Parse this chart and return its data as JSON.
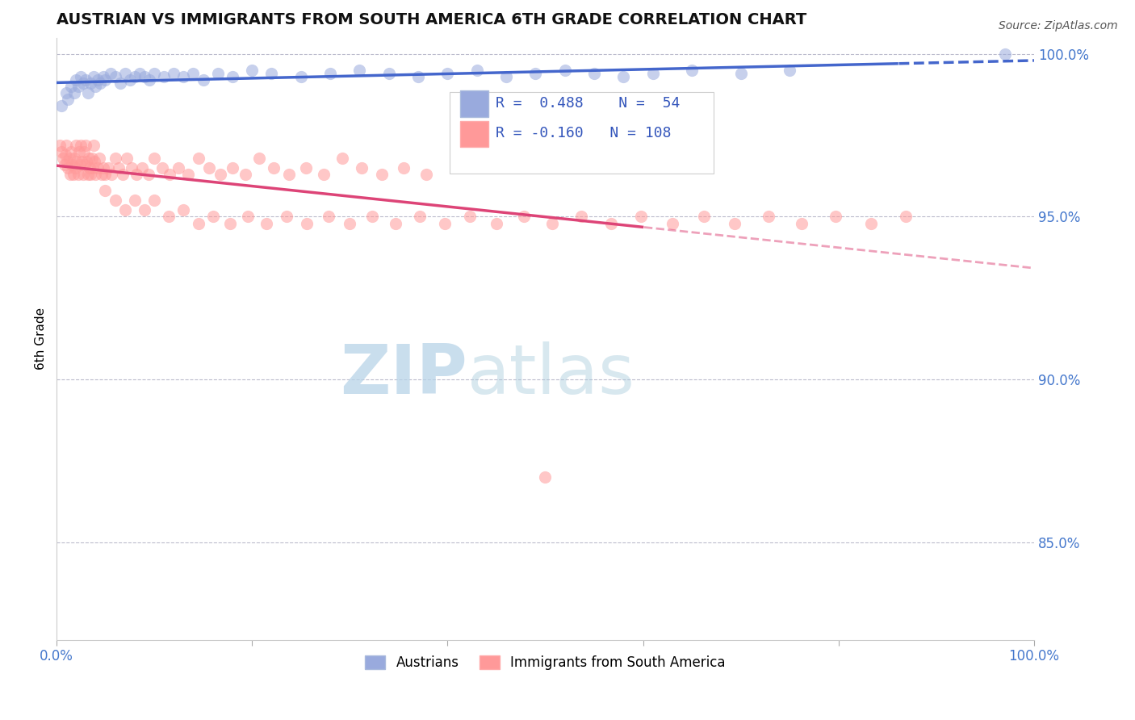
{
  "title": "AUSTRIAN VS IMMIGRANTS FROM SOUTH AMERICA 6TH GRADE CORRELATION CHART",
  "source": "Source: ZipAtlas.com",
  "ylabel": "6th Grade",
  "xlim": [
    0.0,
    1.0
  ],
  "ylim": [
    0.82,
    1.005
  ],
  "yticks": [
    0.85,
    0.9,
    0.95,
    1.0
  ],
  "ytick_labels": [
    "85.0%",
    "90.0%",
    "95.0%",
    "100.0%"
  ],
  "xticks": [
    0.0,
    0.2,
    0.4,
    0.6,
    0.8,
    1.0
  ],
  "xtick_labels": [
    "0.0%",
    "",
    "",
    "",
    "",
    "100.0%"
  ],
  "blue_R": 0.488,
  "blue_N": 54,
  "pink_R": -0.16,
  "pink_N": 108,
  "blue_color": "#99AADD",
  "pink_color": "#FF9999",
  "trend_blue_color": "#4466CC",
  "trend_pink_color": "#DD4477",
  "watermark_zip": "ZIP",
  "watermark_atlas": "atlas",
  "legend_label_blue": "Austrians",
  "legend_label_pink": "Immigrants from South America",
  "blue_x": [
    0.005,
    0.01,
    0.012,
    0.015,
    0.018,
    0.02,
    0.022,
    0.025,
    0.027,
    0.03,
    0.032,
    0.035,
    0.038,
    0.04,
    0.042,
    0.045,
    0.048,
    0.05,
    0.055,
    0.06,
    0.065,
    0.07,
    0.075,
    0.08,
    0.085,
    0.09,
    0.095,
    0.1,
    0.11,
    0.12,
    0.13,
    0.14,
    0.15,
    0.165,
    0.18,
    0.2,
    0.22,
    0.25,
    0.28,
    0.31,
    0.34,
    0.37,
    0.4,
    0.43,
    0.46,
    0.49,
    0.52,
    0.55,
    0.58,
    0.61,
    0.65,
    0.7,
    0.75,
    0.97
  ],
  "blue_y": [
    0.984,
    0.988,
    0.986,
    0.99,
    0.988,
    0.992,
    0.99,
    0.993,
    0.991,
    0.992,
    0.988,
    0.991,
    0.993,
    0.99,
    0.992,
    0.991,
    0.993,
    0.992,
    0.994,
    0.993,
    0.991,
    0.994,
    0.992,
    0.993,
    0.994,
    0.993,
    0.992,
    0.994,
    0.993,
    0.994,
    0.993,
    0.994,
    0.992,
    0.994,
    0.993,
    0.995,
    0.994,
    0.993,
    0.994,
    0.995,
    0.994,
    0.993,
    0.994,
    0.995,
    0.993,
    0.994,
    0.995,
    0.994,
    0.993,
    0.994,
    0.995,
    0.994,
    0.995,
    1.0
  ],
  "pink_x": [
    0.003,
    0.005,
    0.007,
    0.008,
    0.009,
    0.01,
    0.011,
    0.012,
    0.013,
    0.014,
    0.015,
    0.016,
    0.017,
    0.018,
    0.019,
    0.02,
    0.021,
    0.022,
    0.023,
    0.024,
    0.025,
    0.026,
    0.027,
    0.028,
    0.029,
    0.03,
    0.031,
    0.032,
    0.033,
    0.034,
    0.035,
    0.036,
    0.037,
    0.038,
    0.039,
    0.04,
    0.042,
    0.044,
    0.046,
    0.048,
    0.05,
    0.053,
    0.056,
    0.06,
    0.064,
    0.068,
    0.072,
    0.077,
    0.082,
    0.088,
    0.094,
    0.1,
    0.108,
    0.116,
    0.125,
    0.135,
    0.145,
    0.156,
    0.168,
    0.18,
    0.193,
    0.207,
    0.222,
    0.238,
    0.255,
    0.273,
    0.292,
    0.312,
    0.333,
    0.355,
    0.378,
    0.05,
    0.06,
    0.07,
    0.08,
    0.09,
    0.1,
    0.115,
    0.13,
    0.145,
    0.16,
    0.178,
    0.196,
    0.215,
    0.235,
    0.256,
    0.278,
    0.3,
    0.323,
    0.347,
    0.372,
    0.397,
    0.423,
    0.45,
    0.478,
    0.507,
    0.537,
    0.567,
    0.598,
    0.63,
    0.662,
    0.694,
    0.728,
    0.762,
    0.797,
    0.833,
    0.869,
    0.5
  ],
  "pink_y": [
    0.972,
    0.97,
    0.968,
    0.966,
    0.969,
    0.972,
    0.967,
    0.965,
    0.968,
    0.963,
    0.97,
    0.966,
    0.963,
    0.968,
    0.965,
    0.972,
    0.967,
    0.963,
    0.97,
    0.966,
    0.972,
    0.967,
    0.963,
    0.97,
    0.966,
    0.972,
    0.967,
    0.963,
    0.968,
    0.965,
    0.963,
    0.968,
    0.965,
    0.972,
    0.967,
    0.963,
    0.965,
    0.968,
    0.963,
    0.965,
    0.963,
    0.965,
    0.963,
    0.968,
    0.965,
    0.963,
    0.968,
    0.965,
    0.963,
    0.965,
    0.963,
    0.968,
    0.965,
    0.963,
    0.965,
    0.963,
    0.968,
    0.965,
    0.963,
    0.965,
    0.963,
    0.968,
    0.965,
    0.963,
    0.965,
    0.963,
    0.968,
    0.965,
    0.963,
    0.965,
    0.963,
    0.958,
    0.955,
    0.952,
    0.955,
    0.952,
    0.955,
    0.95,
    0.952,
    0.948,
    0.95,
    0.948,
    0.95,
    0.948,
    0.95,
    0.948,
    0.95,
    0.948,
    0.95,
    0.948,
    0.95,
    0.948,
    0.95,
    0.948,
    0.95,
    0.948,
    0.95,
    0.948,
    0.95,
    0.948,
    0.95,
    0.948,
    0.95,
    0.948,
    0.95,
    0.948,
    0.95,
    0.87
  ]
}
